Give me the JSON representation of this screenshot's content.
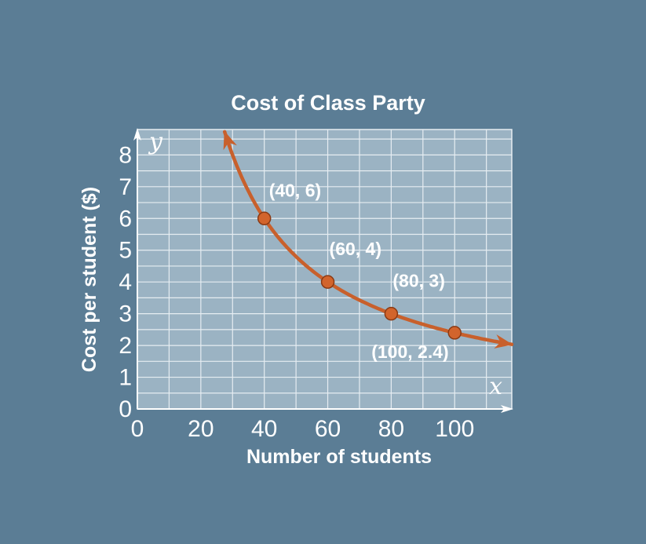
{
  "chart_data": {
    "type": "line",
    "title": "Cost of Class Party",
    "xlabel": "Number of students",
    "ylabel": "Cost per student ($)",
    "x_var": "x",
    "y_var": "y",
    "xlim": [
      0,
      118
    ],
    "ylim": [
      0,
      8.8
    ],
    "x_ticks": [
      "0",
      "20",
      "40",
      "60",
      "80",
      "100"
    ],
    "x_tick_values": [
      0,
      20,
      40,
      60,
      80,
      100
    ],
    "y_ticks": [
      "0",
      "1",
      "2",
      "3",
      "4",
      "5",
      "6",
      "7",
      "8"
    ],
    "y_tick_values": [
      0,
      1,
      2,
      3,
      4,
      5,
      6,
      7,
      8
    ],
    "grid": true,
    "series": [
      {
        "function": "y = 240 / x",
        "x_range": [
          27.5,
          118
        ],
        "arrows": "both",
        "color": "#c8602c"
      }
    ],
    "points": [
      {
        "x": 40,
        "y": 6,
        "label": "(40, 6)"
      },
      {
        "x": 60,
        "y": 4,
        "label": "(60, 4)"
      },
      {
        "x": 80,
        "y": 3,
        "label": "(80, 3)"
      },
      {
        "x": 100,
        "y": 2.4,
        "label": "(100, 2.4)"
      }
    ],
    "colors": {
      "background": "#5b7d95",
      "plot_area": "#9bb3c3",
      "grid": "#e6edf2",
      "curve": "#c8602c",
      "point": "#d2642c",
      "text": "#ffffff"
    }
  }
}
